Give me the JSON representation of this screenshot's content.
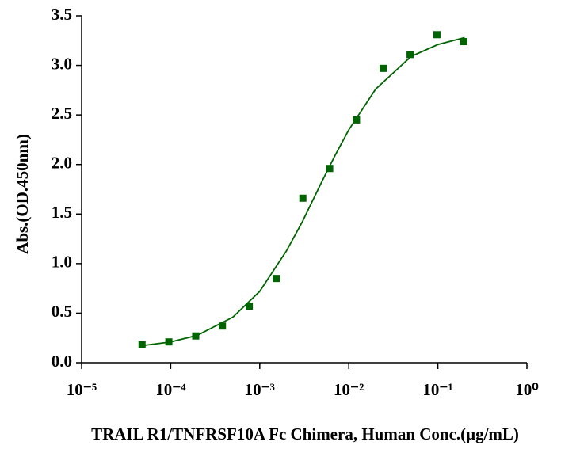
{
  "chart_data": {
    "type": "scatter",
    "xlabel": "TRAIL R1/TNFRSF10A Fc Chimera, Human Conc.(μg/mL)",
    "ylabel": "Abs.(OD.450nm)",
    "xscale": "log",
    "xlim": [
      1e-05,
      1
    ],
    "xticks": [
      {
        "value": 1e-05,
        "label": "10⁻⁵"
      },
      {
        "value": 0.0001,
        "label": "10⁻⁴"
      },
      {
        "value": 0.001,
        "label": "10⁻³"
      },
      {
        "value": 0.01,
        "label": "10⁻²"
      },
      {
        "value": 0.1,
        "label": "10⁻¹"
      },
      {
        "value": 1,
        "label": "10⁰"
      }
    ],
    "ylim": [
      0,
      3.5
    ],
    "yticks": [
      {
        "value": 0,
        "label": "0.0"
      },
      0.5,
      {
        "value": 1,
        "label": "1.0"
      },
      1.5,
      {
        "value": 2,
        "label": "2.0"
      },
      2.5,
      {
        "value": 3,
        "label": "3.0"
      },
      3.5
    ],
    "series": [
      {
        "kind": "points",
        "color": "#006400",
        "x": [
          4.77e-05,
          9.54e-05,
          0.000191,
          0.000381,
          0.000763,
          0.00153,
          0.00305,
          0.0061,
          0.0122,
          0.0244,
          0.0488,
          0.0977,
          0.195
        ],
        "values": [
          0.18,
          0.21,
          0.27,
          0.37,
          0.57,
          0.85,
          1.66,
          1.96,
          2.45,
          2.97,
          3.11,
          3.31,
          3.24
        ]
      },
      {
        "kind": "line",
        "color": "#006400",
        "x": [
          5e-05,
          0.0001,
          0.0002,
          0.0005,
          0.001,
          0.002,
          0.003,
          0.005,
          0.007,
          0.01,
          0.02,
          0.05,
          0.1,
          0.2
        ],
        "values": [
          0.175,
          0.21,
          0.277,
          0.46,
          0.72,
          1.13,
          1.42,
          1.83,
          2.09,
          2.35,
          2.76,
          3.09,
          3.21,
          3.28
        ]
      }
    ]
  }
}
